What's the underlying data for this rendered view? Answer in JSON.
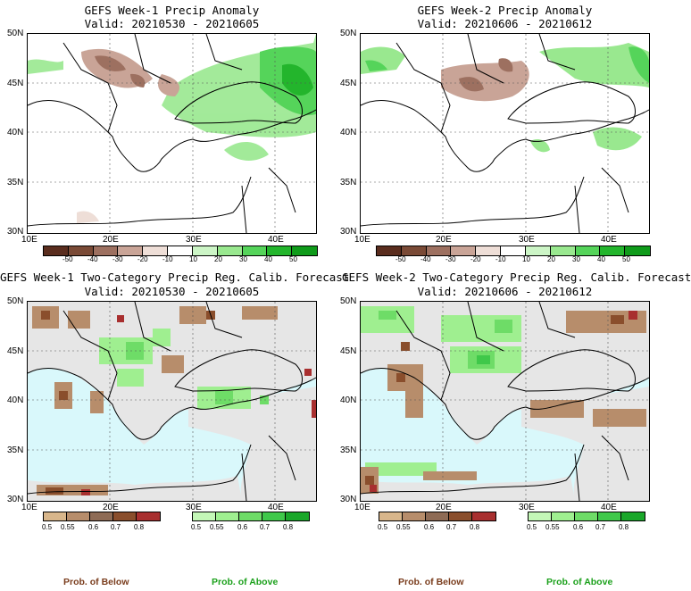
{
  "panels": [
    {
      "title1": "GEFS Week-1 Precip Anomaly",
      "title2": "Valid: 20210530 - 20210605"
    },
    {
      "title1": "GEFS Week-2 Precip Anomaly",
      "title2": "Valid: 20210606 - 20210612"
    },
    {
      "title1": "GEFS Week-1 Two-Category Precip Reg. Calib. Forecast",
      "title2": "Valid: 20210530 - 20210605"
    },
    {
      "title1": "GEFS Week-2 Two-Category Precip Reg. Calib. Forecast",
      "title2": "Valid: 20210606 - 20210612"
    }
  ],
  "lat_labels": [
    "50N",
    "45N",
    "40N",
    "35N",
    "30N"
  ],
  "lon_labels": [
    "10E",
    "20E",
    "30E",
    "40E"
  ],
  "anomaly_colorbar": {
    "ticks": [
      "-50",
      "-40",
      "-30",
      "-20",
      "-10",
      "10",
      "20",
      "30",
      "40",
      "50"
    ],
    "colors": [
      "#5a2d1e",
      "#7a4a36",
      "#9d7060",
      "#c9a497",
      "#eeded7",
      "#ffffff",
      "#ccf5c6",
      "#99e88f",
      "#55d45a",
      "#23b52c",
      "#0f9b1a"
    ]
  },
  "below_colorbar": {
    "ticks": [
      "0.5",
      "0.55",
      "0.6",
      "0.7",
      "0.8"
    ],
    "colors": [
      "#d8b68b",
      "#b78d6b",
      "#8e6b55",
      "#8a4e2c",
      "#a82f2f"
    ]
  },
  "above_colorbar": {
    "ticks": [
      "0.5",
      "0.55",
      "0.6",
      "0.7",
      "0.8"
    ],
    "colors": [
      "#c4f7b7",
      "#9fef90",
      "#6edc67",
      "#3fc84a",
      "#1aa72a"
    ]
  },
  "prob_below": "Prob. of Below",
  "prob_above": "Prob. of Above",
  "colors": {
    "sea_prob": "#d9f8fb",
    "land_gray": "#e6e6e6",
    "label_brown": "#7a3d1d",
    "label_green": "#1ca11c"
  }
}
